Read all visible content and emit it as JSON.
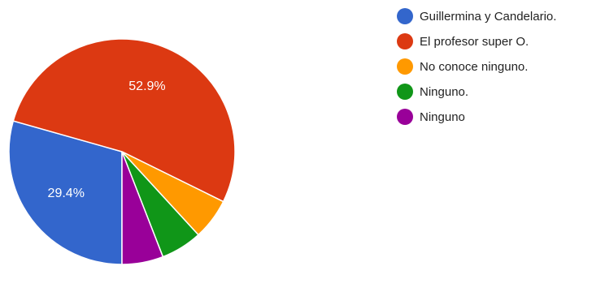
{
  "chart_data": {
    "type": "pie",
    "legend_position": "top-right",
    "start_angle_deg": 90,
    "direction": "clockwise",
    "slices": [
      {
        "label": "Guillermina y Candelario.",
        "value": 29.4,
        "color": "#3366cc",
        "data_label": "29.4%"
      },
      {
        "label": "El profesor super O.",
        "value": 52.9,
        "color": "#dc3912",
        "data_label": "52.9%"
      },
      {
        "label": "No conoce ninguno.",
        "value": 5.9,
        "color": "#ff9900",
        "data_label": ""
      },
      {
        "label": "Ninguno.",
        "value": 5.9,
        "color": "#109618",
        "data_label": ""
      },
      {
        "label": "Ninguno",
        "value": 5.9,
        "color": "#990099",
        "data_label": ""
      }
    ]
  }
}
